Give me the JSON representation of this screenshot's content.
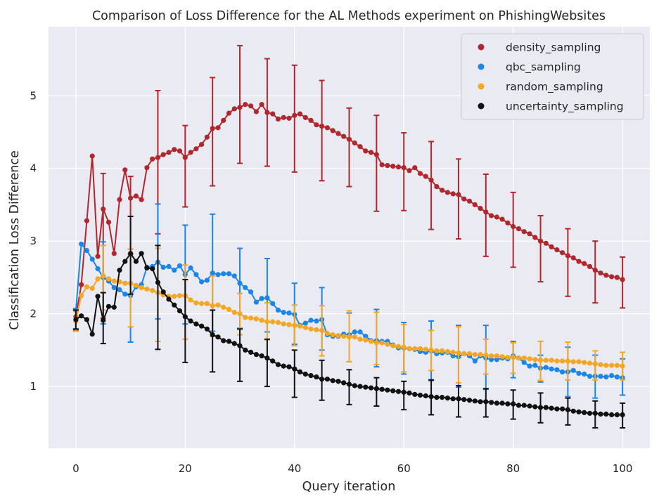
{
  "chart_data": {
    "type": "line",
    "title": "Comparison of Loss Difference for the AL Methods experiment on PhishingWebsites",
    "xlabel": "Query iteration",
    "ylabel": "Classification Loss Difference",
    "xlim": [
      -5,
      105
    ],
    "ylim": [
      0.15,
      5.95
    ],
    "xticks": [
      0,
      20,
      40,
      60,
      80,
      100
    ],
    "yticks": [
      1,
      2,
      3,
      4,
      5
    ],
    "grid": true,
    "legend_position": "top-right",
    "series": [
      {
        "name": "density_sampling",
        "color": "#b0282e",
        "x": [
          0,
          1,
          2,
          3,
          4,
          5,
          6,
          7,
          8,
          9,
          10,
          11,
          12,
          13,
          14,
          15,
          16,
          17,
          18,
          19,
          20,
          21,
          22,
          23,
          24,
          25,
          26,
          27,
          28,
          29,
          30,
          31,
          32,
          33,
          34,
          35,
          36,
          37,
          38,
          39,
          40,
          41,
          42,
          43,
          44,
          45,
          46,
          47,
          48,
          49,
          50,
          51,
          52,
          53,
          54,
          55,
          56,
          57,
          58,
          59,
          60,
          61,
          62,
          63,
          64,
          65,
          66,
          67,
          68,
          69,
          70,
          71,
          72,
          73,
          74,
          75,
          76,
          77,
          78,
          79,
          80,
          81,
          82,
          83,
          84,
          85,
          86,
          87,
          88,
          89,
          90,
          91,
          92,
          93,
          94,
          95,
          96,
          97,
          98,
          99,
          100
        ],
        "y": [
          1.96,
          2.4,
          3.28,
          4.17,
          2.79,
          3.44,
          3.26,
          2.83,
          3.57,
          3.98,
          3.59,
          3.62,
          3.57,
          4.01,
          4.13,
          4.15,
          4.19,
          4.22,
          4.26,
          4.24,
          4.15,
          4.22,
          4.27,
          4.33,
          4.43,
          4.55,
          4.56,
          4.66,
          4.76,
          4.82,
          4.84,
          4.88,
          4.86,
          4.78,
          4.88,
          4.77,
          4.75,
          4.68,
          4.7,
          4.69,
          4.73,
          4.75,
          4.7,
          4.66,
          4.6,
          4.58,
          4.56,
          4.52,
          4.48,
          4.44,
          4.4,
          4.35,
          4.3,
          4.24,
          4.22,
          4.19,
          4.05,
          4.04,
          4.03,
          4.02,
          4.01,
          3.97,
          4.01,
          3.93,
          3.89,
          3.84,
          3.75,
          3.7,
          3.67,
          3.65,
          3.64,
          3.58,
          3.55,
          3.5,
          3.45,
          3.4,
          3.35,
          3.33,
          3.3,
          3.25,
          3.2,
          3.17,
          3.13,
          3.1,
          3.05,
          3.0,
          2.97,
          2.92,
          2.88,
          2.84,
          2.8,
          2.77,
          2.72,
          2.69,
          2.65,
          2.6,
          2.56,
          2.53,
          2.51,
          2.5,
          2.47
        ],
        "error_x": [
          0,
          5,
          10,
          15,
          20,
          25,
          30,
          35,
          40,
          45,
          50,
          55,
          60,
          65,
          70,
          75,
          80,
          85,
          90,
          95,
          100
        ],
        "error_lower": [
          1.77,
          1.94,
          2.82,
          3.1,
          3.47,
          3.76,
          4.07,
          4.03,
          3.95,
          3.83,
          3.75,
          3.41,
          3.42,
          3.16,
          3.03,
          2.79,
          2.64,
          2.44,
          2.24,
          2.15,
          2.08
        ],
        "error_upper": [
          2.07,
          3.93,
          3.89,
          5.07,
          4.59,
          5.25,
          5.69,
          5.51,
          5.42,
          5.21,
          4.83,
          4.73,
          4.49,
          4.37,
          4.13,
          3.92,
          3.67,
          3.35,
          3.17,
          3.0,
          2.78
        ]
      },
      {
        "name": "qbc_sampling",
        "color": "#1b86e8",
        "x": [
          0,
          1,
          2,
          3,
          4,
          5,
          6,
          7,
          8,
          9,
          10,
          11,
          12,
          13,
          14,
          15,
          16,
          17,
          18,
          19,
          20,
          21,
          22,
          23,
          24,
          25,
          26,
          27,
          28,
          29,
          30,
          31,
          32,
          33,
          34,
          35,
          36,
          37,
          38,
          39,
          40,
          41,
          42,
          43,
          44,
          45,
          46,
          47,
          48,
          49,
          50,
          51,
          52,
          53,
          54,
          55,
          56,
          57,
          58,
          59,
          60,
          61,
          62,
          63,
          64,
          65,
          66,
          67,
          68,
          69,
          70,
          71,
          72,
          73,
          74,
          75,
          76,
          77,
          78,
          79,
          80,
          81,
          82,
          83,
          84,
          85,
          86,
          87,
          88,
          89,
          90,
          91,
          92,
          93,
          94,
          95,
          96,
          97,
          98,
          99,
          100
        ],
        "y": [
          2.05,
          2.96,
          2.87,
          2.75,
          2.62,
          2.5,
          2.45,
          2.36,
          2.33,
          2.27,
          2.25,
          2.37,
          2.4,
          2.64,
          2.65,
          2.71,
          2.64,
          2.65,
          2.6,
          2.66,
          2.54,
          2.63,
          2.54,
          2.44,
          2.46,
          2.56,
          2.54,
          2.55,
          2.55,
          2.52,
          2.42,
          2.36,
          2.3,
          2.16,
          2.21,
          2.22,
          2.14,
          2.05,
          2.02,
          2.01,
          1.99,
          1.84,
          1.87,
          1.91,
          1.9,
          1.92,
          1.71,
          1.69,
          1.69,
          1.72,
          1.71,
          1.75,
          1.75,
          1.69,
          1.63,
          1.63,
          1.62,
          1.62,
          1.57,
          1.53,
          1.53,
          1.52,
          1.51,
          1.48,
          1.47,
          1.49,
          1.45,
          1.46,
          1.47,
          1.42,
          1.41,
          1.45,
          1.42,
          1.35,
          1.42,
          1.39,
          1.37,
          1.37,
          1.39,
          1.38,
          1.42,
          1.39,
          1.33,
          1.28,
          1.29,
          1.25,
          1.26,
          1.24,
          1.23,
          1.2,
          1.2,
          1.22,
          1.18,
          1.17,
          1.14,
          1.14,
          1.14,
          1.13,
          1.15,
          1.13,
          1.12
        ],
        "error_x": [
          0,
          5,
          10,
          15,
          20,
          25,
          30,
          35,
          40,
          45,
          50,
          55,
          60,
          65,
          70,
          75,
          80,
          85,
          90,
          95,
          100
        ],
        "error_lower": [
          1.79,
          1.86,
          1.61,
          1.93,
          1.86,
          1.76,
          1.8,
          1.75,
          1.58,
          1.5,
          1.34,
          1.27,
          1.17,
          1.08,
          0.99,
          0.96,
          1.12,
          1.06,
          0.86,
          0.84,
          0.88
        ],
        "error_upper": [
          2.06,
          2.99,
          2.89,
          3.51,
          3.22,
          3.37,
          2.9,
          2.76,
          2.42,
          2.36,
          2.01,
          2.06,
          1.88,
          1.9,
          1.84,
          1.84,
          1.62,
          1.43,
          1.54,
          1.43,
          1.38
        ]
      },
      {
        "name": "random_sampling",
        "color": "#f5a623",
        "x": [
          0,
          1,
          2,
          3,
          4,
          5,
          6,
          7,
          8,
          9,
          10,
          11,
          12,
          13,
          14,
          15,
          16,
          17,
          18,
          19,
          20,
          21,
          22,
          23,
          24,
          25,
          26,
          27,
          28,
          29,
          30,
          31,
          32,
          33,
          34,
          35,
          36,
          37,
          38,
          39,
          40,
          41,
          42,
          43,
          44,
          45,
          46,
          47,
          48,
          49,
          50,
          51,
          52,
          53,
          54,
          55,
          56,
          57,
          58,
          59,
          60,
          61,
          62,
          63,
          64,
          65,
          66,
          67,
          68,
          69,
          70,
          71,
          72,
          73,
          74,
          75,
          76,
          77,
          78,
          79,
          80,
          81,
          82,
          83,
          84,
          85,
          86,
          87,
          88,
          89,
          90,
          91,
          92,
          93,
          94,
          95,
          96,
          97,
          98,
          99,
          100
        ],
        "y": [
          1.9,
          2.25,
          2.37,
          2.35,
          2.48,
          2.52,
          2.48,
          2.45,
          2.44,
          2.42,
          2.42,
          2.39,
          2.36,
          2.34,
          2.32,
          2.29,
          2.26,
          2.24,
          2.24,
          2.25,
          2.25,
          2.19,
          2.15,
          2.14,
          2.14,
          2.11,
          2.12,
          2.09,
          2.06,
          2.02,
          2.0,
          1.95,
          1.94,
          1.93,
          1.91,
          1.89,
          1.89,
          1.88,
          1.86,
          1.85,
          1.84,
          1.83,
          1.81,
          1.79,
          1.78,
          1.77,
          1.73,
          1.71,
          1.7,
          1.69,
          1.68,
          1.68,
          1.65,
          1.64,
          1.62,
          1.6,
          1.6,
          1.58,
          1.56,
          1.55,
          1.54,
          1.52,
          1.52,
          1.52,
          1.51,
          1.5,
          1.49,
          1.49,
          1.48,
          1.47,
          1.46,
          1.45,
          1.45,
          1.44,
          1.44,
          1.43,
          1.42,
          1.42,
          1.41,
          1.4,
          1.4,
          1.39,
          1.39,
          1.38,
          1.37,
          1.36,
          1.36,
          1.36,
          1.35,
          1.35,
          1.35,
          1.34,
          1.34,
          1.33,
          1.32,
          1.31,
          1.3,
          1.29,
          1.29,
          1.29,
          1.28
        ],
        "error_x": [
          0,
          5,
          10,
          15,
          20,
          25,
          30,
          35,
          40,
          45,
          50,
          55,
          60,
          65,
          70,
          75,
          80,
          85,
          90,
          95,
          100
        ],
        "error_lower": [
          1.76,
          2.05,
          1.82,
          1.62,
          1.65,
          1.69,
          1.71,
          1.64,
          1.56,
          1.42,
          1.34,
          1.3,
          1.2,
          1.22,
          1.05,
          1.17,
          1.18,
          1.08,
          1.09,
          1.09,
          1.09
        ],
        "error_upper": [
          2.04,
          2.94,
          2.89,
          2.9,
          2.67,
          2.52,
          2.28,
          2.15,
          2.12,
          2.11,
          2.04,
          2.02,
          1.85,
          1.77,
          1.82,
          1.65,
          1.6,
          1.62,
          1.61,
          1.49,
          1.47
        ]
      },
      {
        "name": "uncertainty_sampling",
        "color": "#111111",
        "x": [
          0,
          1,
          2,
          3,
          4,
          5,
          6,
          7,
          8,
          9,
          10,
          11,
          12,
          13,
          14,
          15,
          16,
          17,
          18,
          19,
          20,
          21,
          22,
          23,
          24,
          25,
          26,
          27,
          28,
          29,
          30,
          31,
          32,
          33,
          34,
          35,
          36,
          37,
          38,
          39,
          40,
          41,
          42,
          43,
          44,
          45,
          46,
          47,
          48,
          49,
          50,
          51,
          52,
          53,
          54,
          55,
          56,
          57,
          58,
          59,
          60,
          61,
          62,
          63,
          64,
          65,
          66,
          67,
          68,
          69,
          70,
          71,
          72,
          73,
          74,
          75,
          76,
          77,
          78,
          79,
          80,
          81,
          82,
          83,
          84,
          85,
          86,
          87,
          88,
          89,
          90,
          91,
          92,
          93,
          94,
          95,
          96,
          97,
          98,
          99,
          100
        ],
        "y": [
          1.92,
          1.97,
          1.92,
          1.72,
          2.24,
          1.91,
          2.1,
          2.09,
          2.6,
          2.72,
          2.83,
          2.72,
          2.83,
          2.63,
          2.62,
          2.43,
          2.3,
          2.2,
          2.12,
          2.04,
          1.96,
          1.9,
          1.86,
          1.83,
          1.79,
          1.71,
          1.68,
          1.63,
          1.62,
          1.59,
          1.56,
          1.5,
          1.47,
          1.44,
          1.42,
          1.39,
          1.35,
          1.3,
          1.28,
          1.27,
          1.24,
          1.2,
          1.17,
          1.15,
          1.13,
          1.1,
          1.1,
          1.08,
          1.07,
          1.05,
          1.03,
          1.01,
          1.0,
          0.99,
          0.98,
          0.97,
          0.96,
          0.95,
          0.94,
          0.93,
          0.92,
          0.91,
          0.89,
          0.88,
          0.87,
          0.86,
          0.85,
          0.85,
          0.84,
          0.83,
          0.83,
          0.82,
          0.81,
          0.8,
          0.79,
          0.79,
          0.78,
          0.77,
          0.77,
          0.76,
          0.76,
          0.74,
          0.74,
          0.73,
          0.72,
          0.71,
          0.71,
          0.7,
          0.69,
          0.69,
          0.68,
          0.66,
          0.65,
          0.64,
          0.63,
          0.63,
          0.62,
          0.62,
          0.61,
          0.61,
          0.61
        ],
        "error_x": [
          0,
          5,
          10,
          15,
          20,
          25,
          30,
          35,
          40,
          45,
          50,
          55,
          60,
          65,
          70,
          75,
          80,
          85,
          90,
          95,
          100
        ],
        "error_lower": [
          1.79,
          1.59,
          2.27,
          1.51,
          1.33,
          1.2,
          1.07,
          1.0,
          0.85,
          0.81,
          0.75,
          0.73,
          0.68,
          0.61,
          0.58,
          0.58,
          0.55,
          0.5,
          0.47,
          0.43,
          0.43
        ],
        "error_upper": [
          2.05,
          2.29,
          3.34,
          2.94,
          2.47,
          2.05,
          1.79,
          1.65,
          1.5,
          1.36,
          1.23,
          1.12,
          1.07,
          1.09,
          1.01,
          0.97,
          0.95,
          0.91,
          0.84,
          0.8,
          0.77
        ]
      }
    ]
  }
}
